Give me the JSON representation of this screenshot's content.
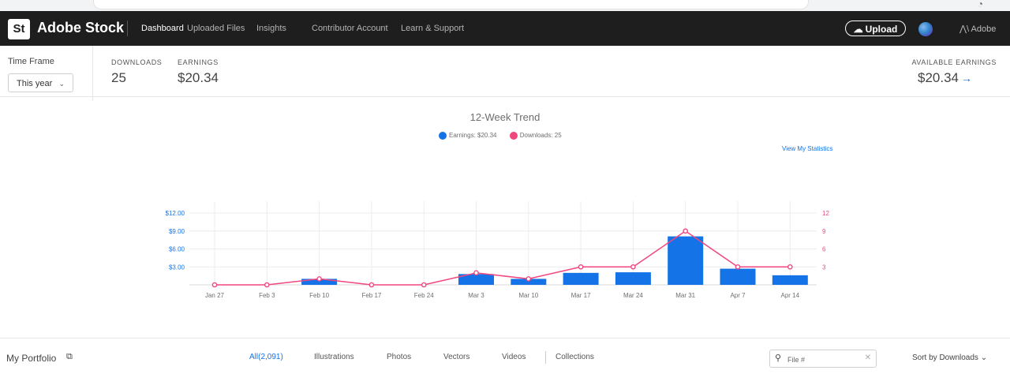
{
  "colors": {
    "accent": "#1473e6",
    "downloads": "#f2467f",
    "nav_bg": "#1e1e1e"
  },
  "nav": {
    "logo": "St",
    "brand": "Adobe Stock",
    "items": [
      "Dashboard",
      "Uploaded Files",
      "Insights",
      "Contributor Account",
      "Learn & Support"
    ],
    "upload": "Upload",
    "adobe": "Adobe"
  },
  "stats": {
    "timeframe_label": "Time Frame",
    "timeframe_value": "This year",
    "downloads_label": "DOWNLOADS",
    "downloads_value": "25",
    "earnings_label": "EARNINGS",
    "earnings_value": "$20.34",
    "available_label": "AVAILABLE EARNINGS",
    "available_value": "$20.34"
  },
  "chart_data": {
    "type": "bar",
    "title": "12-Week Trend",
    "legend": [
      "Earnings: $20.34",
      "Downloads: 25"
    ],
    "link": "View My Statistics",
    "categories": [
      "Jan 27",
      "Feb 3",
      "Feb 10",
      "Feb 17",
      "Feb 24",
      "Mar 3",
      "Mar 10",
      "Mar 17",
      "Mar 24",
      "Mar 31",
      "Apr 7",
      "Apr 14"
    ],
    "series": [
      {
        "name": "Earnings",
        "type": "bar",
        "axis": "left",
        "values": [
          0,
          0,
          1.0,
          0,
          0,
          1.8,
          1.0,
          2.0,
          2.1,
          8.1,
          2.7,
          1.6
        ]
      },
      {
        "name": "Downloads",
        "type": "line",
        "axis": "right",
        "values": [
          0,
          0,
          1,
          0,
          0,
          2,
          1,
          3,
          3,
          9,
          3,
          3
        ]
      }
    ],
    "y_left": {
      "ticks": [
        "$3.00",
        "$6.00",
        "$9.00",
        "$12.00"
      ],
      "values": [
        3,
        6,
        9,
        12
      ],
      "ylim": [
        0,
        12
      ]
    },
    "y_right": {
      "ticks": [
        "3",
        "6",
        "9",
        "12"
      ],
      "values": [
        3,
        6,
        9,
        12
      ],
      "ylim": [
        0,
        12
      ]
    },
    "grid": true
  },
  "portfolio": {
    "title": "My Portfolio",
    "tabs": [
      "All(2,091)",
      "Illustrations",
      "Photos",
      "Vectors",
      "Videos"
    ],
    "collections": "Collections",
    "search_placeholder": "File #",
    "sort": "Sort by Downloads"
  }
}
